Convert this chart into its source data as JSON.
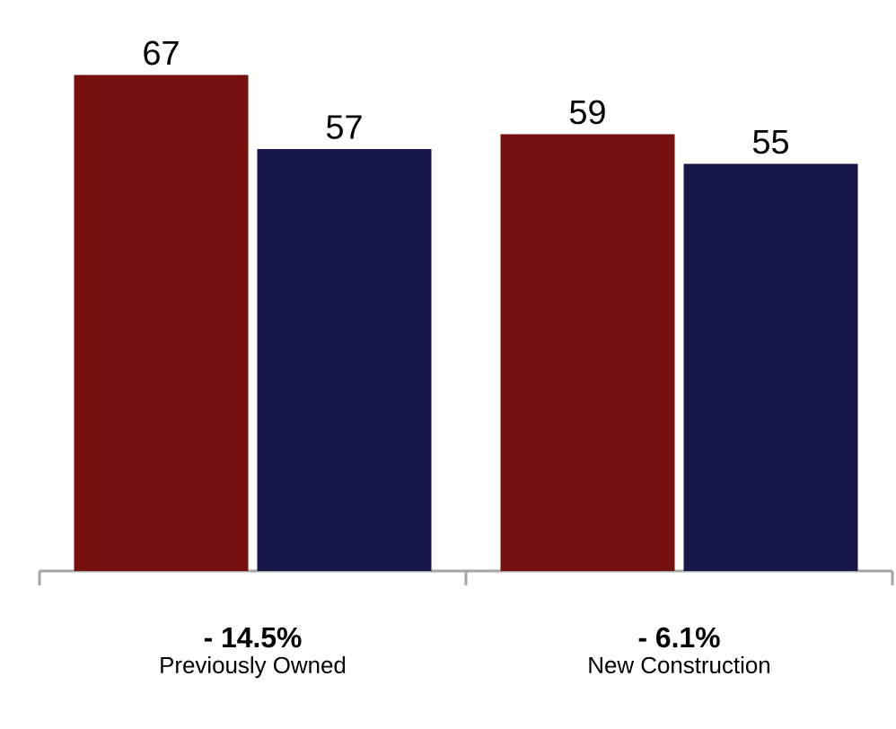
{
  "chart_data": {
    "type": "bar",
    "categories": [
      "Previously Owned",
      "New Construction"
    ],
    "series": [
      {
        "color": "#75100f",
        "values": [
          67,
          59
        ]
      },
      {
        "color": "#17174a",
        "values": [
          57,
          55
        ]
      }
    ],
    "data_labels": true,
    "annotations": [
      "- 14.5%",
      "- 6.1%"
    ]
  }
}
